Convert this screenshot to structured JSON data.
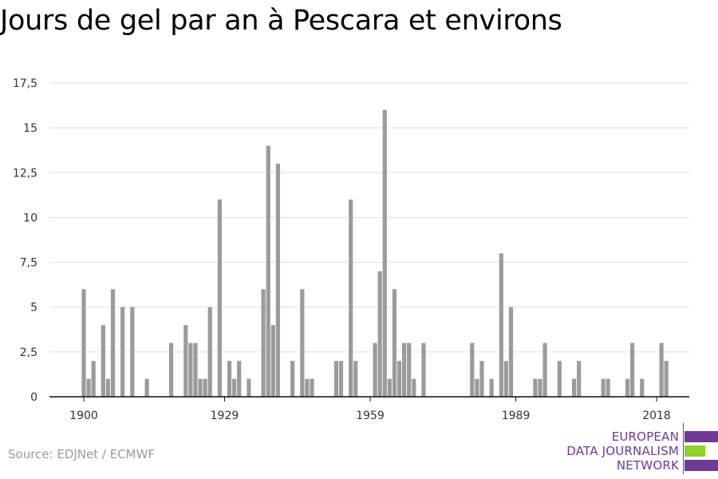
{
  "title": "Jours de gel par an à Pescara et environs",
  "source": "Source: EDJNet / ECMWF",
  "logo": {
    "lines": [
      "EUROPEAN",
      "DATA JOURNALISM",
      "NETWORK"
    ],
    "colors": {
      "purple": "#6e3a96",
      "green": "#8fd12d"
    }
  },
  "chart_data": {
    "type": "bar",
    "title": "Jours de gel par an à Pescara et environs",
    "xlabel": "",
    "ylabel": "",
    "x_tick_labels": [
      "1900",
      "1929",
      "1959",
      "1989",
      "2018"
    ],
    "y_tick_labels": [
      "0",
      "2,5",
      "5",
      "7,5",
      "10",
      "12,5",
      "15",
      "17,5"
    ],
    "ylim": [
      0,
      17.5
    ],
    "grid": true,
    "bar_color": "#9b9b9b",
    "start_year": 1900,
    "values": [
      6,
      1,
      2,
      0,
      4,
      1,
      6,
      0,
      5,
      0,
      5,
      0,
      0,
      1,
      0,
      0,
      0,
      0,
      3,
      0,
      0,
      4,
      3,
      3,
      1,
      1,
      5,
      0,
      11,
      0,
      2,
      1,
      2,
      0,
      1,
      0,
      0,
      6,
      14,
      4,
      13,
      0,
      0,
      2,
      0,
      6,
      1,
      1,
      0,
      0,
      0,
      0,
      2,
      2,
      0,
      11,
      2,
      0,
      0,
      0,
      3,
      7,
      16,
      1,
      6,
      2,
      3,
      3,
      1,
      0,
      3,
      0,
      0,
      0,
      0,
      0,
      0,
      0,
      0,
      0,
      3,
      1,
      2,
      0,
      1,
      0,
      8,
      2,
      5,
      0,
      0,
      0,
      0,
      1,
      1,
      3,
      0,
      0,
      2,
      0,
      0,
      1,
      2,
      0,
      0,
      0,
      0,
      1,
      1,
      0,
      0,
      0,
      1,
      3,
      0,
      1,
      0,
      0,
      0,
      3,
      2
    ]
  }
}
